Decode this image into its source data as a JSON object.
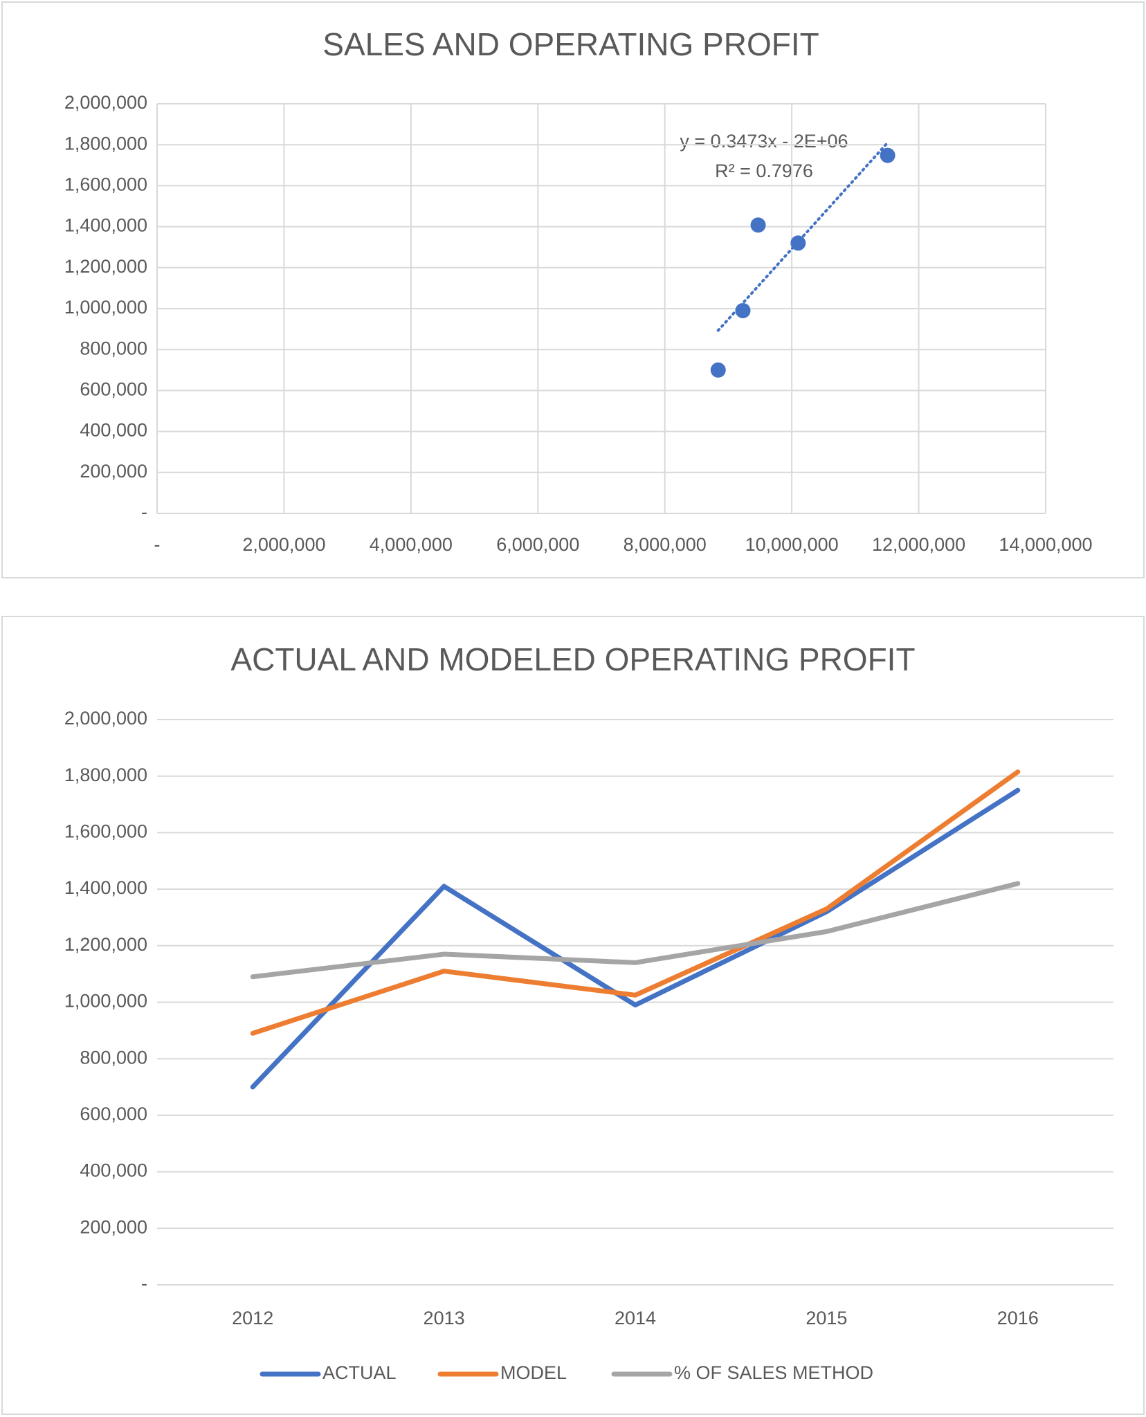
{
  "chart_data": [
    {
      "type": "scatter",
      "title": "SALES AND OPERATING PROFIT",
      "annotations": [
        "y = 0.3473x - 2E+06",
        "R² = 0.7976"
      ],
      "trendline": "linear",
      "color": "#4472c4",
      "x": [
        8840000,
        9230000,
        9470000,
        10100000,
        11510000
      ],
      "values": [
        700000,
        990000,
        1408000,
        1320000,
        1748000
      ],
      "xlim": [
        0,
        14000000
      ],
      "xticks": [
        {
          "value": 0,
          "label": "-"
        },
        {
          "value": 2000000,
          "label": "2,000,000"
        },
        {
          "value": 4000000,
          "label": "4,000,000"
        },
        {
          "value": 6000000,
          "label": "6,000,000"
        },
        {
          "value": 8000000,
          "label": "8,000,000"
        },
        {
          "value": 10000000,
          "label": "10,000,000"
        },
        {
          "value": 12000000,
          "label": "12,000,000"
        },
        {
          "value": 14000000,
          "label": "14,000,000"
        }
      ],
      "ylim": [
        0,
        2000000
      ],
      "yticks": [
        {
          "value": 0,
          "label": "-"
        },
        {
          "value": 200000,
          "label": "200,000"
        },
        {
          "value": 400000,
          "label": "400,000"
        },
        {
          "value": 600000,
          "label": "600,000"
        },
        {
          "value": 800000,
          "label": "800,000"
        },
        {
          "value": 1000000,
          "label": "1,000,000"
        },
        {
          "value": 1200000,
          "label": "1,200,000"
        },
        {
          "value": 1400000,
          "label": "1,400,000"
        },
        {
          "value": 1600000,
          "label": "1,600,000"
        },
        {
          "value": 1800000,
          "label": "1,800,000"
        },
        {
          "value": 2000000,
          "label": "2,000,000"
        }
      ],
      "grid": true
    },
    {
      "type": "line",
      "title": "ACTUAL AND MODELED OPERATING PROFIT",
      "categories": [
        "2012",
        "2013",
        "2014",
        "2015",
        "2016"
      ],
      "series": [
        {
          "name": "ACTUAL",
          "color": "#4472c4",
          "values": [
            700000,
            1410000,
            990000,
            1320000,
            1750000
          ]
        },
        {
          "name": "MODEL",
          "color": "#ed7d31",
          "values": [
            890000,
            1110000,
            1025000,
            1330000,
            1815000
          ]
        },
        {
          "name": "% OF SALES METHOD",
          "color": "#a5a5a5",
          "values": [
            1090000,
            1170000,
            1140000,
            1250000,
            1420000
          ]
        }
      ],
      "ylim": [
        0,
        2000000
      ],
      "yticks": [
        {
          "value": 0,
          "label": "-"
        },
        {
          "value": 200000,
          "label": "200,000"
        },
        {
          "value": 400000,
          "label": "400,000"
        },
        {
          "value": 600000,
          "label": "600,000"
        },
        {
          "value": 800000,
          "label": "800,000"
        },
        {
          "value": 1000000,
          "label": "1,000,000"
        },
        {
          "value": 1200000,
          "label": "1,200,000"
        },
        {
          "value": 1400000,
          "label": "1,400,000"
        },
        {
          "value": 1600000,
          "label": "1,600,000"
        },
        {
          "value": 1800000,
          "label": "1,800,000"
        },
        {
          "value": 2000000,
          "label": "2,000,000"
        }
      ],
      "grid": true,
      "legend": "bottom"
    }
  ]
}
